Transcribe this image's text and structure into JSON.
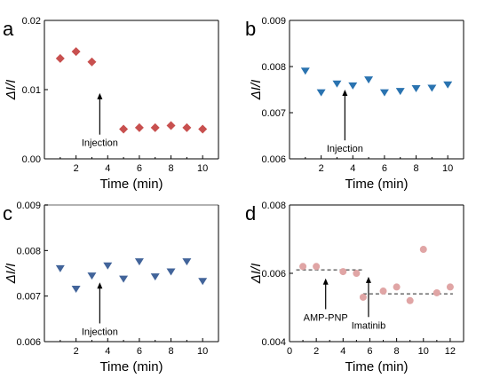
{
  "chart_data": [
    {
      "panel": "a",
      "type": "scatter",
      "xlabel": "Time (min)",
      "ylabel": "ΔI/I",
      "xlim": [
        0,
        11
      ],
      "ylim": [
        0,
        0.02
      ],
      "xticks": [
        "2",
        "4",
        "6",
        "8",
        "10"
      ],
      "yticks": [
        "0.00",
        "0.01",
        "0.02"
      ],
      "marker": "diamond",
      "color": "#c8504f",
      "points": [
        [
          1,
          0.0145
        ],
        [
          2,
          0.0155
        ],
        [
          3,
          0.014
        ],
        [
          5,
          0.0043
        ],
        [
          6,
          0.0045
        ],
        [
          7,
          0.0045
        ],
        [
          8,
          0.0048
        ],
        [
          9,
          0.0045
        ],
        [
          10,
          0.0043
        ]
      ],
      "annotations": [
        {
          "text": "Injection",
          "arrow_x": 3.5,
          "arrow_y_from": 0.0035,
          "arrow_y_to": 0.0095
        }
      ]
    },
    {
      "panel": "b",
      "type": "scatter",
      "xlabel": "Time (min)",
      "ylabel": "ΔI/I",
      "xlim": [
        0,
        11
      ],
      "ylim": [
        0.006,
        0.009
      ],
      "xticks": [
        "2",
        "4",
        "6",
        "8",
        "10"
      ],
      "yticks": [
        "0.006",
        "0.007",
        "0.008",
        "0.009"
      ],
      "marker": "triangle-down",
      "color": "#2a73b0",
      "points": [
        [
          1,
          0.0079
        ],
        [
          2,
          0.00743
        ],
        [
          3,
          0.00762
        ],
        [
          4,
          0.00758
        ],
        [
          5,
          0.00771
        ],
        [
          6,
          0.00743
        ],
        [
          7,
          0.00746
        ],
        [
          8,
          0.00752
        ],
        [
          9,
          0.00753
        ],
        [
          10,
          0.0076
        ]
      ],
      "annotations": [
        {
          "text": "Injection",
          "arrow_x": 3.5,
          "arrow_y_from": 0.0064,
          "arrow_y_to": 0.0075
        }
      ]
    },
    {
      "panel": "c",
      "type": "scatter",
      "xlabel": "Time (min)",
      "ylabel": "ΔI/I",
      "xlim": [
        0,
        11
      ],
      "ylim": [
        0.006,
        0.009
      ],
      "xticks": [
        "2",
        "4",
        "6",
        "8",
        "10"
      ],
      "yticks": [
        "0.006",
        "0.007",
        "0.008",
        "0.009"
      ],
      "marker": "triangle-down",
      "color": "#42649a",
      "points": [
        [
          1,
          0.0076
        ],
        [
          2,
          0.00715
        ],
        [
          3,
          0.00744
        ],
        [
          4,
          0.00766
        ],
        [
          5,
          0.00737
        ],
        [
          6,
          0.00775
        ],
        [
          7,
          0.00742
        ],
        [
          8,
          0.00753
        ],
        [
          9,
          0.00775
        ],
        [
          10,
          0.00732
        ]
      ],
      "annotations": [
        {
          "text": "Injection",
          "arrow_x": 3.5,
          "arrow_y_from": 0.0064,
          "arrow_y_to": 0.0073
        }
      ]
    },
    {
      "panel": "d",
      "type": "scatter",
      "xlabel": "Time (min)",
      "ylabel": "ΔI/I",
      "xlim": [
        0,
        13
      ],
      "ylim": [
        0.004,
        0.008
      ],
      "xticks": [
        "0",
        "2",
        "4",
        "6",
        "8",
        "10",
        "12"
      ],
      "yticks": [
        "0.004",
        "0.006",
        "0.008"
      ],
      "marker": "circle",
      "color": "#e0a5a5",
      "points": [
        [
          1,
          0.0062
        ],
        [
          2,
          0.0062
        ],
        [
          4,
          0.00605
        ],
        [
          5,
          0.006
        ],
        [
          5.5,
          0.0053
        ],
        [
          7,
          0.00548
        ],
        [
          8,
          0.0056
        ],
        [
          9,
          0.0052
        ],
        [
          10,
          0.0067
        ],
        [
          11,
          0.00543
        ],
        [
          12,
          0.0056
        ]
      ],
      "segments": [
        {
          "x": [
            0.5,
            5.5
          ],
          "y": 0.0061
        },
        {
          "x": [
            5.5,
            12.2
          ],
          "y": 0.0054
        }
      ],
      "annotations": [
        {
          "text": "AMP-PNP",
          "arrow_x": 2.7,
          "arrow_y_from": 0.00495,
          "arrow_y_to": 0.00585
        },
        {
          "text": "Imatinib",
          "arrow_x": 5.9,
          "arrow_y_from": 0.00472,
          "arrow_y_to": 0.0059
        }
      ]
    }
  ]
}
